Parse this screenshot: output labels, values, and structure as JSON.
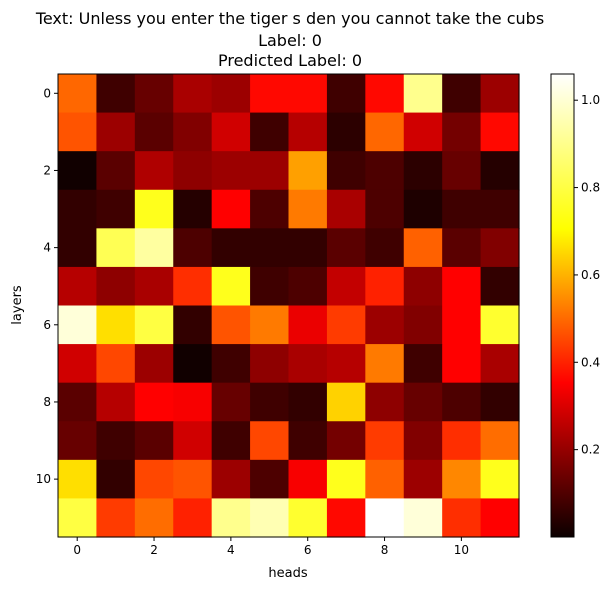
{
  "chart_data": {
    "type": "heatmap",
    "title_lines": [
      "Text: Unless you enter the tiger s den you cannot take the cubs",
      "Label: 0",
      "Predicted Label: 0"
    ],
    "xlabel": "heads",
    "ylabel": "layers",
    "x_ticks": [
      0,
      2,
      4,
      6,
      8,
      10
    ],
    "y_ticks": [
      0,
      2,
      4,
      6,
      8,
      10
    ],
    "colormap": "hot",
    "colorbar": {
      "min": 0.0,
      "max": 1.06,
      "ticks": [
        0.2,
        0.4,
        0.6,
        0.8,
        1.0
      ],
      "tick_labels": [
        "0.2",
        "0.4",
        "0.6",
        "0.8",
        "1.0"
      ]
    },
    "rows": 12,
    "cols": 12,
    "values": [
      [
        0.55,
        0.08,
        0.14,
        0.24,
        0.22,
        0.4,
        0.4,
        0.08,
        0.4,
        0.94,
        0.08,
        0.22
      ],
      [
        0.52,
        0.22,
        0.12,
        0.18,
        0.3,
        0.08,
        0.26,
        0.05,
        0.55,
        0.3,
        0.16,
        0.4
      ],
      [
        0.01,
        0.12,
        0.25,
        0.2,
        0.22,
        0.22,
        0.64,
        0.08,
        0.1,
        0.05,
        0.14,
        0.04
      ],
      [
        0.06,
        0.08,
        0.82,
        0.04,
        0.38,
        0.1,
        0.58,
        0.24,
        0.1,
        0.03,
        0.08,
        0.08
      ],
      [
        0.06,
        0.88,
        0.96,
        0.1,
        0.06,
        0.06,
        0.06,
        0.12,
        0.08,
        0.54,
        0.12,
        0.18
      ],
      [
        0.26,
        0.2,
        0.24,
        0.46,
        0.82,
        0.08,
        0.1,
        0.28,
        0.44,
        0.2,
        0.38,
        0.06
      ],
      [
        1.02,
        0.74,
        0.86,
        0.06,
        0.52,
        0.58,
        0.34,
        0.48,
        0.22,
        0.18,
        0.38,
        0.84
      ],
      [
        0.3,
        0.5,
        0.22,
        0.01,
        0.08,
        0.2,
        0.24,
        0.26,
        0.58,
        0.08,
        0.38,
        0.24
      ],
      [
        0.12,
        0.26,
        0.38,
        0.36,
        0.14,
        0.08,
        0.06,
        0.72,
        0.2,
        0.14,
        0.1,
        0.06
      ],
      [
        0.14,
        0.08,
        0.12,
        0.3,
        0.08,
        0.5,
        0.08,
        0.16,
        0.48,
        0.18,
        0.46,
        0.56
      ],
      [
        0.74,
        0.06,
        0.5,
        0.52,
        0.22,
        0.1,
        0.36,
        0.82,
        0.54,
        0.22,
        0.6,
        0.82
      ],
      [
        0.86,
        0.48,
        0.56,
        0.44,
        0.94,
        0.98,
        0.84,
        0.4,
        1.06,
        1.02,
        0.46,
        0.38
      ]
    ]
  }
}
